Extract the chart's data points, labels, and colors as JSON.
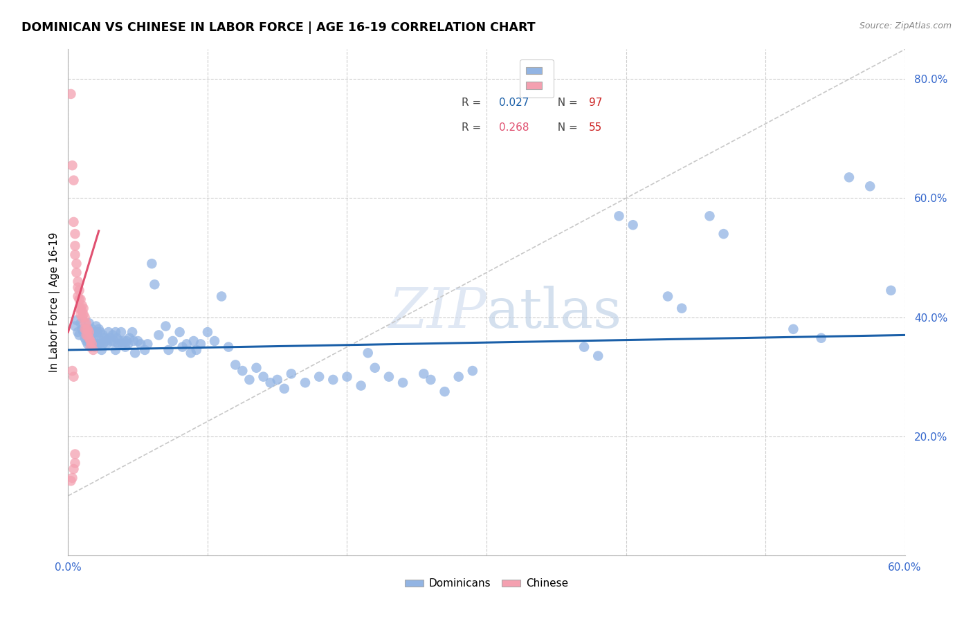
{
  "title": "DOMINICAN VS CHINESE IN LABOR FORCE | AGE 16-19 CORRELATION CHART",
  "source": "Source: ZipAtlas.com",
  "ylabel": "In Labor Force | Age 16-19",
  "xlim": [
    0.0,
    0.6
  ],
  "ylim": [
    0.0,
    0.85
  ],
  "y_ticks": [
    0.0,
    0.2,
    0.4,
    0.6,
    0.8
  ],
  "y_tick_labels": [
    "",
    "20.0%",
    "40.0%",
    "60.0%",
    "80.0%"
  ],
  "x_ticks": [
    0.0,
    0.1,
    0.2,
    0.3,
    0.4,
    0.5,
    0.6
  ],
  "x_tick_labels": [
    "0.0%",
    "",
    "",
    "",
    "",
    "",
    "60.0%"
  ],
  "dominicans_color": "#92b4e3",
  "chinese_color": "#f4a0b0",
  "blue_line_color": "#1a5fa8",
  "pink_line_color": "#e05070",
  "diagonal_color": "#c8c8c8",
  "watermark_color": "#ccd9ee",
  "blue_line_x": [
    0.0,
    0.6
  ],
  "blue_line_y": [
    0.345,
    0.37
  ],
  "pink_line_x": [
    0.0,
    0.022
  ],
  "pink_line_y": [
    0.375,
    0.545
  ],
  "diag_line_x": [
    0.0,
    0.6
  ],
  "diag_line_y": [
    0.1,
    0.85
  ],
  "blue_dots": [
    [
      0.005,
      0.385
    ],
    [
      0.006,
      0.395
    ],
    [
      0.007,
      0.375
    ],
    [
      0.008,
      0.37
    ],
    [
      0.009,
      0.39
    ],
    [
      0.01,
      0.38
    ],
    [
      0.011,
      0.375
    ],
    [
      0.012,
      0.365
    ],
    [
      0.013,
      0.375
    ],
    [
      0.013,
      0.36
    ],
    [
      0.014,
      0.38
    ],
    [
      0.014,
      0.355
    ],
    [
      0.015,
      0.39
    ],
    [
      0.015,
      0.365
    ],
    [
      0.016,
      0.375
    ],
    [
      0.016,
      0.355
    ],
    [
      0.017,
      0.38
    ],
    [
      0.017,
      0.36
    ],
    [
      0.018,
      0.365
    ],
    [
      0.019,
      0.375
    ],
    [
      0.019,
      0.35
    ],
    [
      0.02,
      0.385
    ],
    [
      0.02,
      0.36
    ],
    [
      0.021,
      0.375
    ],
    [
      0.021,
      0.355
    ],
    [
      0.022,
      0.38
    ],
    [
      0.022,
      0.355
    ],
    [
      0.023,
      0.375
    ],
    [
      0.024,
      0.36
    ],
    [
      0.024,
      0.345
    ],
    [
      0.025,
      0.37
    ],
    [
      0.025,
      0.355
    ],
    [
      0.026,
      0.365
    ],
    [
      0.027,
      0.36
    ],
    [
      0.028,
      0.355
    ],
    [
      0.029,
      0.375
    ],
    [
      0.03,
      0.365
    ],
    [
      0.031,
      0.36
    ],
    [
      0.032,
      0.37
    ],
    [
      0.033,
      0.36
    ],
    [
      0.034,
      0.375
    ],
    [
      0.034,
      0.345
    ],
    [
      0.035,
      0.365
    ],
    [
      0.036,
      0.355
    ],
    [
      0.037,
      0.36
    ],
    [
      0.038,
      0.375
    ],
    [
      0.039,
      0.355
    ],
    [
      0.04,
      0.36
    ],
    [
      0.041,
      0.35
    ],
    [
      0.042,
      0.36
    ],
    [
      0.043,
      0.355
    ],
    [
      0.044,
      0.365
    ],
    [
      0.046,
      0.375
    ],
    [
      0.047,
      0.36
    ],
    [
      0.048,
      0.34
    ],
    [
      0.05,
      0.36
    ],
    [
      0.052,
      0.355
    ],
    [
      0.055,
      0.345
    ],
    [
      0.057,
      0.355
    ],
    [
      0.06,
      0.49
    ],
    [
      0.062,
      0.455
    ],
    [
      0.065,
      0.37
    ],
    [
      0.07,
      0.385
    ],
    [
      0.072,
      0.345
    ],
    [
      0.075,
      0.36
    ],
    [
      0.08,
      0.375
    ],
    [
      0.082,
      0.35
    ],
    [
      0.085,
      0.355
    ],
    [
      0.088,
      0.34
    ],
    [
      0.09,
      0.36
    ],
    [
      0.092,
      0.345
    ],
    [
      0.095,
      0.355
    ],
    [
      0.1,
      0.375
    ],
    [
      0.105,
      0.36
    ],
    [
      0.11,
      0.435
    ],
    [
      0.115,
      0.35
    ],
    [
      0.12,
      0.32
    ],
    [
      0.125,
      0.31
    ],
    [
      0.13,
      0.295
    ],
    [
      0.135,
      0.315
    ],
    [
      0.14,
      0.3
    ],
    [
      0.145,
      0.29
    ],
    [
      0.15,
      0.295
    ],
    [
      0.155,
      0.28
    ],
    [
      0.16,
      0.305
    ],
    [
      0.17,
      0.29
    ],
    [
      0.18,
      0.3
    ],
    [
      0.19,
      0.295
    ],
    [
      0.2,
      0.3
    ],
    [
      0.21,
      0.285
    ],
    [
      0.215,
      0.34
    ],
    [
      0.22,
      0.315
    ],
    [
      0.23,
      0.3
    ],
    [
      0.24,
      0.29
    ],
    [
      0.255,
      0.305
    ],
    [
      0.26,
      0.295
    ],
    [
      0.27,
      0.275
    ],
    [
      0.28,
      0.3
    ],
    [
      0.29,
      0.31
    ],
    [
      0.37,
      0.35
    ],
    [
      0.38,
      0.335
    ],
    [
      0.395,
      0.57
    ],
    [
      0.405,
      0.555
    ],
    [
      0.43,
      0.435
    ],
    [
      0.44,
      0.415
    ],
    [
      0.46,
      0.57
    ],
    [
      0.47,
      0.54
    ],
    [
      0.52,
      0.38
    ],
    [
      0.54,
      0.365
    ],
    [
      0.56,
      0.635
    ],
    [
      0.575,
      0.62
    ],
    [
      0.59,
      0.445
    ]
  ],
  "pink_dots": [
    [
      0.002,
      0.775
    ],
    [
      0.003,
      0.655
    ],
    [
      0.004,
      0.63
    ],
    [
      0.004,
      0.56
    ],
    [
      0.005,
      0.54
    ],
    [
      0.005,
      0.52
    ],
    [
      0.005,
      0.505
    ],
    [
      0.006,
      0.49
    ],
    [
      0.006,
      0.475
    ],
    [
      0.007,
      0.46
    ],
    [
      0.007,
      0.45
    ],
    [
      0.007,
      0.435
    ],
    [
      0.008,
      0.445
    ],
    [
      0.008,
      0.43
    ],
    [
      0.008,
      0.415
    ],
    [
      0.009,
      0.43
    ],
    [
      0.009,
      0.415
    ],
    [
      0.009,
      0.405
    ],
    [
      0.01,
      0.42
    ],
    [
      0.01,
      0.41
    ],
    [
      0.01,
      0.4
    ],
    [
      0.011,
      0.415
    ],
    [
      0.011,
      0.405
    ],
    [
      0.012,
      0.4
    ],
    [
      0.012,
      0.39
    ],
    [
      0.012,
      0.38
    ],
    [
      0.013,
      0.39
    ],
    [
      0.013,
      0.38
    ],
    [
      0.013,
      0.37
    ],
    [
      0.014,
      0.38
    ],
    [
      0.014,
      0.37
    ],
    [
      0.015,
      0.375
    ],
    [
      0.015,
      0.365
    ],
    [
      0.016,
      0.36
    ],
    [
      0.016,
      0.35
    ],
    [
      0.017,
      0.355
    ],
    [
      0.018,
      0.345
    ],
    [
      0.003,
      0.31
    ],
    [
      0.004,
      0.3
    ],
    [
      0.005,
      0.17
    ],
    [
      0.005,
      0.155
    ],
    [
      0.004,
      0.145
    ],
    [
      0.003,
      0.13
    ],
    [
      0.002,
      0.125
    ]
  ]
}
